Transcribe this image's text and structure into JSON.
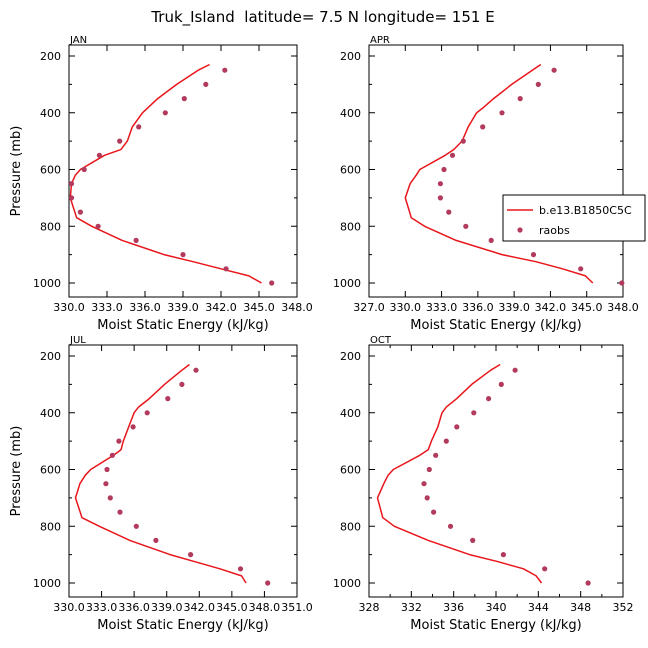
{
  "figure_title": "Truk_Island  latitude= 7.5 N longitude= 151 E",
  "colors": {
    "model": "#e8161b",
    "obs": "#b23a5c",
    "axis": "#000000"
  },
  "chart_data": [
    {
      "type": "line",
      "panel": "JAN",
      "xlabel": "Moist Static Energy (kJ/kg)",
      "ylabel": "Pressure (mb)",
      "xlim": [
        330.0,
        348.0
      ],
      "ylim": [
        1000,
        200
      ],
      "xticks": [
        330.0,
        333.0,
        336.0,
        339.0,
        342.0,
        345.0,
        348.0
      ],
      "xtick_labels": [
        "330.0",
        "333.0",
        "336.0",
        "339.0",
        "342.0",
        "345.0",
        "348.0"
      ],
      "yticks": [
        200,
        400,
        600,
        800,
        1000
      ],
      "ytick_labels": [
        "200",
        "400",
        "600",
        "800",
        "1000"
      ],
      "series": [
        {
          "name": "b.e13.B1850C5C",
          "kind": "line",
          "pressure": [
            230,
            250,
            300,
            350,
            400,
            450,
            500,
            530,
            550,
            600,
            620,
            650,
            700,
            770,
            800,
            850,
            900,
            925,
            950,
            975,
            1000
          ],
          "values": [
            341.1,
            340.2,
            338.5,
            337.0,
            335.8,
            335.0,
            334.6,
            334.1,
            332.8,
            330.9,
            330.5,
            330.2,
            330.1,
            330.6,
            331.8,
            334.2,
            337.5,
            339.8,
            342.0,
            344.2,
            345.2
          ]
        },
        {
          "name": "raobs",
          "kind": "markers",
          "pressure": [
            250,
            300,
            350,
            400,
            450,
            500,
            550,
            600,
            650,
            700,
            750,
            800,
            850,
            900,
            950,
            1000
          ],
          "values": [
            342.3,
            340.8,
            339.1,
            337.6,
            335.5,
            334.0,
            332.4,
            331.2,
            330.2,
            330.2,
            330.9,
            332.3,
            335.3,
            339.0,
            342.4,
            346.0
          ]
        }
      ]
    },
    {
      "type": "line",
      "panel": "APR",
      "xlabel": "Moist Static Energy (kJ/kg)",
      "ylabel": "",
      "xlim": [
        327.0,
        348.0
      ],
      "ylim": [
        1000,
        200
      ],
      "xticks": [
        327.0,
        330.0,
        333.0,
        336.0,
        339.0,
        342.0,
        345.0,
        348.0
      ],
      "xtick_labels": [
        "327.0",
        "330.0",
        "333.0",
        "336.0",
        "339.0",
        "342.0",
        "345.0",
        "348.0"
      ],
      "yticks": [
        200,
        400,
        600,
        800,
        1000
      ],
      "ytick_labels": [
        "200",
        "400",
        "600",
        "800",
        "1000"
      ],
      "legend": {
        "placement": "right",
        "labels": [
          "b.e13.B1850C5C",
          "raobs"
        ]
      },
      "series": [
        {
          "name": "b.e13.B1850C5C",
          "kind": "line",
          "pressure": [
            230,
            250,
            300,
            350,
            380,
            400,
            450,
            500,
            530,
            550,
            600,
            620,
            650,
            700,
            770,
            800,
            850,
            900,
            925,
            950,
            975,
            1000
          ],
          "values": [
            341.2,
            340.5,
            338.8,
            337.3,
            336.5,
            335.9,
            335.2,
            334.7,
            334.0,
            333.3,
            331.2,
            330.9,
            330.4,
            330.0,
            330.5,
            331.6,
            334.2,
            338.0,
            340.8,
            343.0,
            344.9,
            345.5
          ]
        },
        {
          "name": "raobs",
          "kind": "markers",
          "pressure": [
            250,
            300,
            350,
            400,
            450,
            500,
            550,
            600,
            650,
            700,
            750,
            800,
            850,
            900,
            950,
            1000
          ],
          "values": [
            342.3,
            341.0,
            339.5,
            338.0,
            336.4,
            334.8,
            333.9,
            333.2,
            332.9,
            332.9,
            333.6,
            335.0,
            337.1,
            340.6,
            344.5,
            347.9
          ]
        }
      ]
    },
    {
      "type": "line",
      "panel": "JUL",
      "xlabel": "Moist Static Energy (kJ/kg)",
      "ylabel": "Pressure (mb)",
      "xlim": [
        330.0,
        351.0
      ],
      "ylim": [
        1000,
        200
      ],
      "xticks": [
        330.0,
        333.0,
        336.0,
        339.0,
        342.0,
        345.0,
        348.0,
        351.0
      ],
      "xtick_labels": [
        "330.0",
        "333.0",
        "336.0",
        "339.0",
        "342.0",
        "345.0",
        "348.0",
        "351.0"
      ],
      "yticks": [
        200,
        400,
        600,
        800,
        1000
      ],
      "ytick_labels": [
        "200",
        "400",
        "600",
        "800",
        "1000"
      ],
      "series": [
        {
          "name": "b.e13.B1850C5C",
          "kind": "line",
          "pressure": [
            230,
            250,
            300,
            350,
            380,
            400,
            450,
            500,
            530,
            550,
            600,
            620,
            650,
            700,
            770,
            800,
            850,
            900,
            925,
            950,
            975,
            1000
          ],
          "values": [
            341.1,
            340.4,
            338.8,
            337.4,
            336.4,
            336.0,
            335.5,
            335.0,
            334.8,
            334.1,
            332.0,
            331.5,
            331.0,
            330.6,
            331.2,
            332.8,
            335.6,
            339.3,
            341.6,
            343.9,
            345.9,
            346.3
          ]
        },
        {
          "name": "raobs",
          "kind": "markers",
          "pressure": [
            250,
            300,
            350,
            400,
            450,
            500,
            550,
            600,
            650,
            700,
            750,
            800,
            850,
            900,
            950,
            1000
          ],
          "values": [
            341.7,
            340.4,
            339.1,
            337.2,
            335.9,
            334.6,
            334.0,
            333.5,
            333.4,
            333.8,
            334.7,
            336.2,
            338.0,
            341.2,
            345.8,
            348.3
          ]
        }
      ]
    },
    {
      "type": "line",
      "panel": "OCT",
      "xlabel": "Moist Static Energy (kJ/kg)",
      "ylabel": "",
      "xlim": [
        328,
        352
      ],
      "ylim": [
        1000,
        200
      ],
      "xticks": [
        328,
        332,
        336,
        340,
        344,
        348,
        352
      ],
      "xtick_labels": [
        "328",
        "332",
        "336",
        "340",
        "344",
        "348",
        "352"
      ],
      "minor_xticks": [
        330,
        334,
        338,
        342,
        346,
        350
      ],
      "yticks": [
        200,
        400,
        600,
        800,
        1000
      ],
      "ytick_labels": [
        "200",
        "400",
        "600",
        "800",
        "1000"
      ],
      "series": [
        {
          "name": "b.e13.B1850C5C",
          "kind": "line",
          "pressure": [
            230,
            250,
            300,
            350,
            380,
            400,
            450,
            500,
            530,
            550,
            600,
            620,
            650,
            700,
            770,
            800,
            850,
            900,
            925,
            950,
            975,
            1000
          ],
          "values": [
            340.4,
            339.5,
            337.7,
            336.3,
            335.3,
            334.9,
            334.5,
            333.9,
            333.6,
            332.8,
            330.3,
            329.8,
            329.4,
            328.8,
            329.3,
            330.4,
            333.6,
            337.5,
            340.2,
            342.6,
            343.8,
            344.3
          ]
        },
        {
          "name": "raobs",
          "kind": "markers",
          "pressure": [
            250,
            300,
            350,
            400,
            450,
            500,
            550,
            600,
            650,
            700,
            750,
            800,
            850,
            900,
            950,
            1000
          ],
          "values": [
            341.8,
            340.5,
            339.3,
            337.9,
            336.3,
            335.3,
            334.3,
            333.7,
            333.2,
            333.5,
            334.1,
            335.7,
            337.8,
            340.7,
            344.6,
            348.7
          ]
        }
      ]
    }
  ]
}
